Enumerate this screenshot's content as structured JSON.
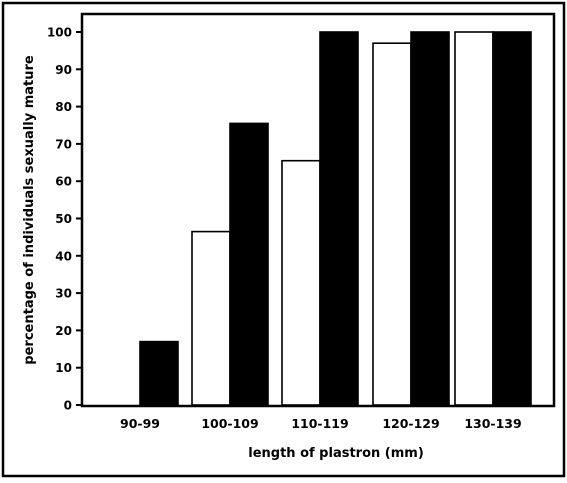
{
  "chart_data": {
    "type": "bar",
    "title": "",
    "xlabel": "length of plastron (mm)",
    "ylabel": "percentage of individuals sexually mature",
    "categories": [
      "90-99",
      "100-109",
      "110-119",
      "120-129",
      "130-139"
    ],
    "y_ticks": [
      0,
      10,
      20,
      30,
      40,
      50,
      60,
      70,
      80,
      90,
      100
    ],
    "ylim": [
      0,
      105
    ],
    "grid": false,
    "legend": "none",
    "series": [
      {
        "style": "open",
        "fill": "#ffffff",
        "values": [
          0,
          46.5,
          65.5,
          97,
          100
        ]
      },
      {
        "style": "solid",
        "fill": "#000000",
        "values": [
          17,
          75.5,
          100,
          100,
          100
        ]
      }
    ]
  }
}
